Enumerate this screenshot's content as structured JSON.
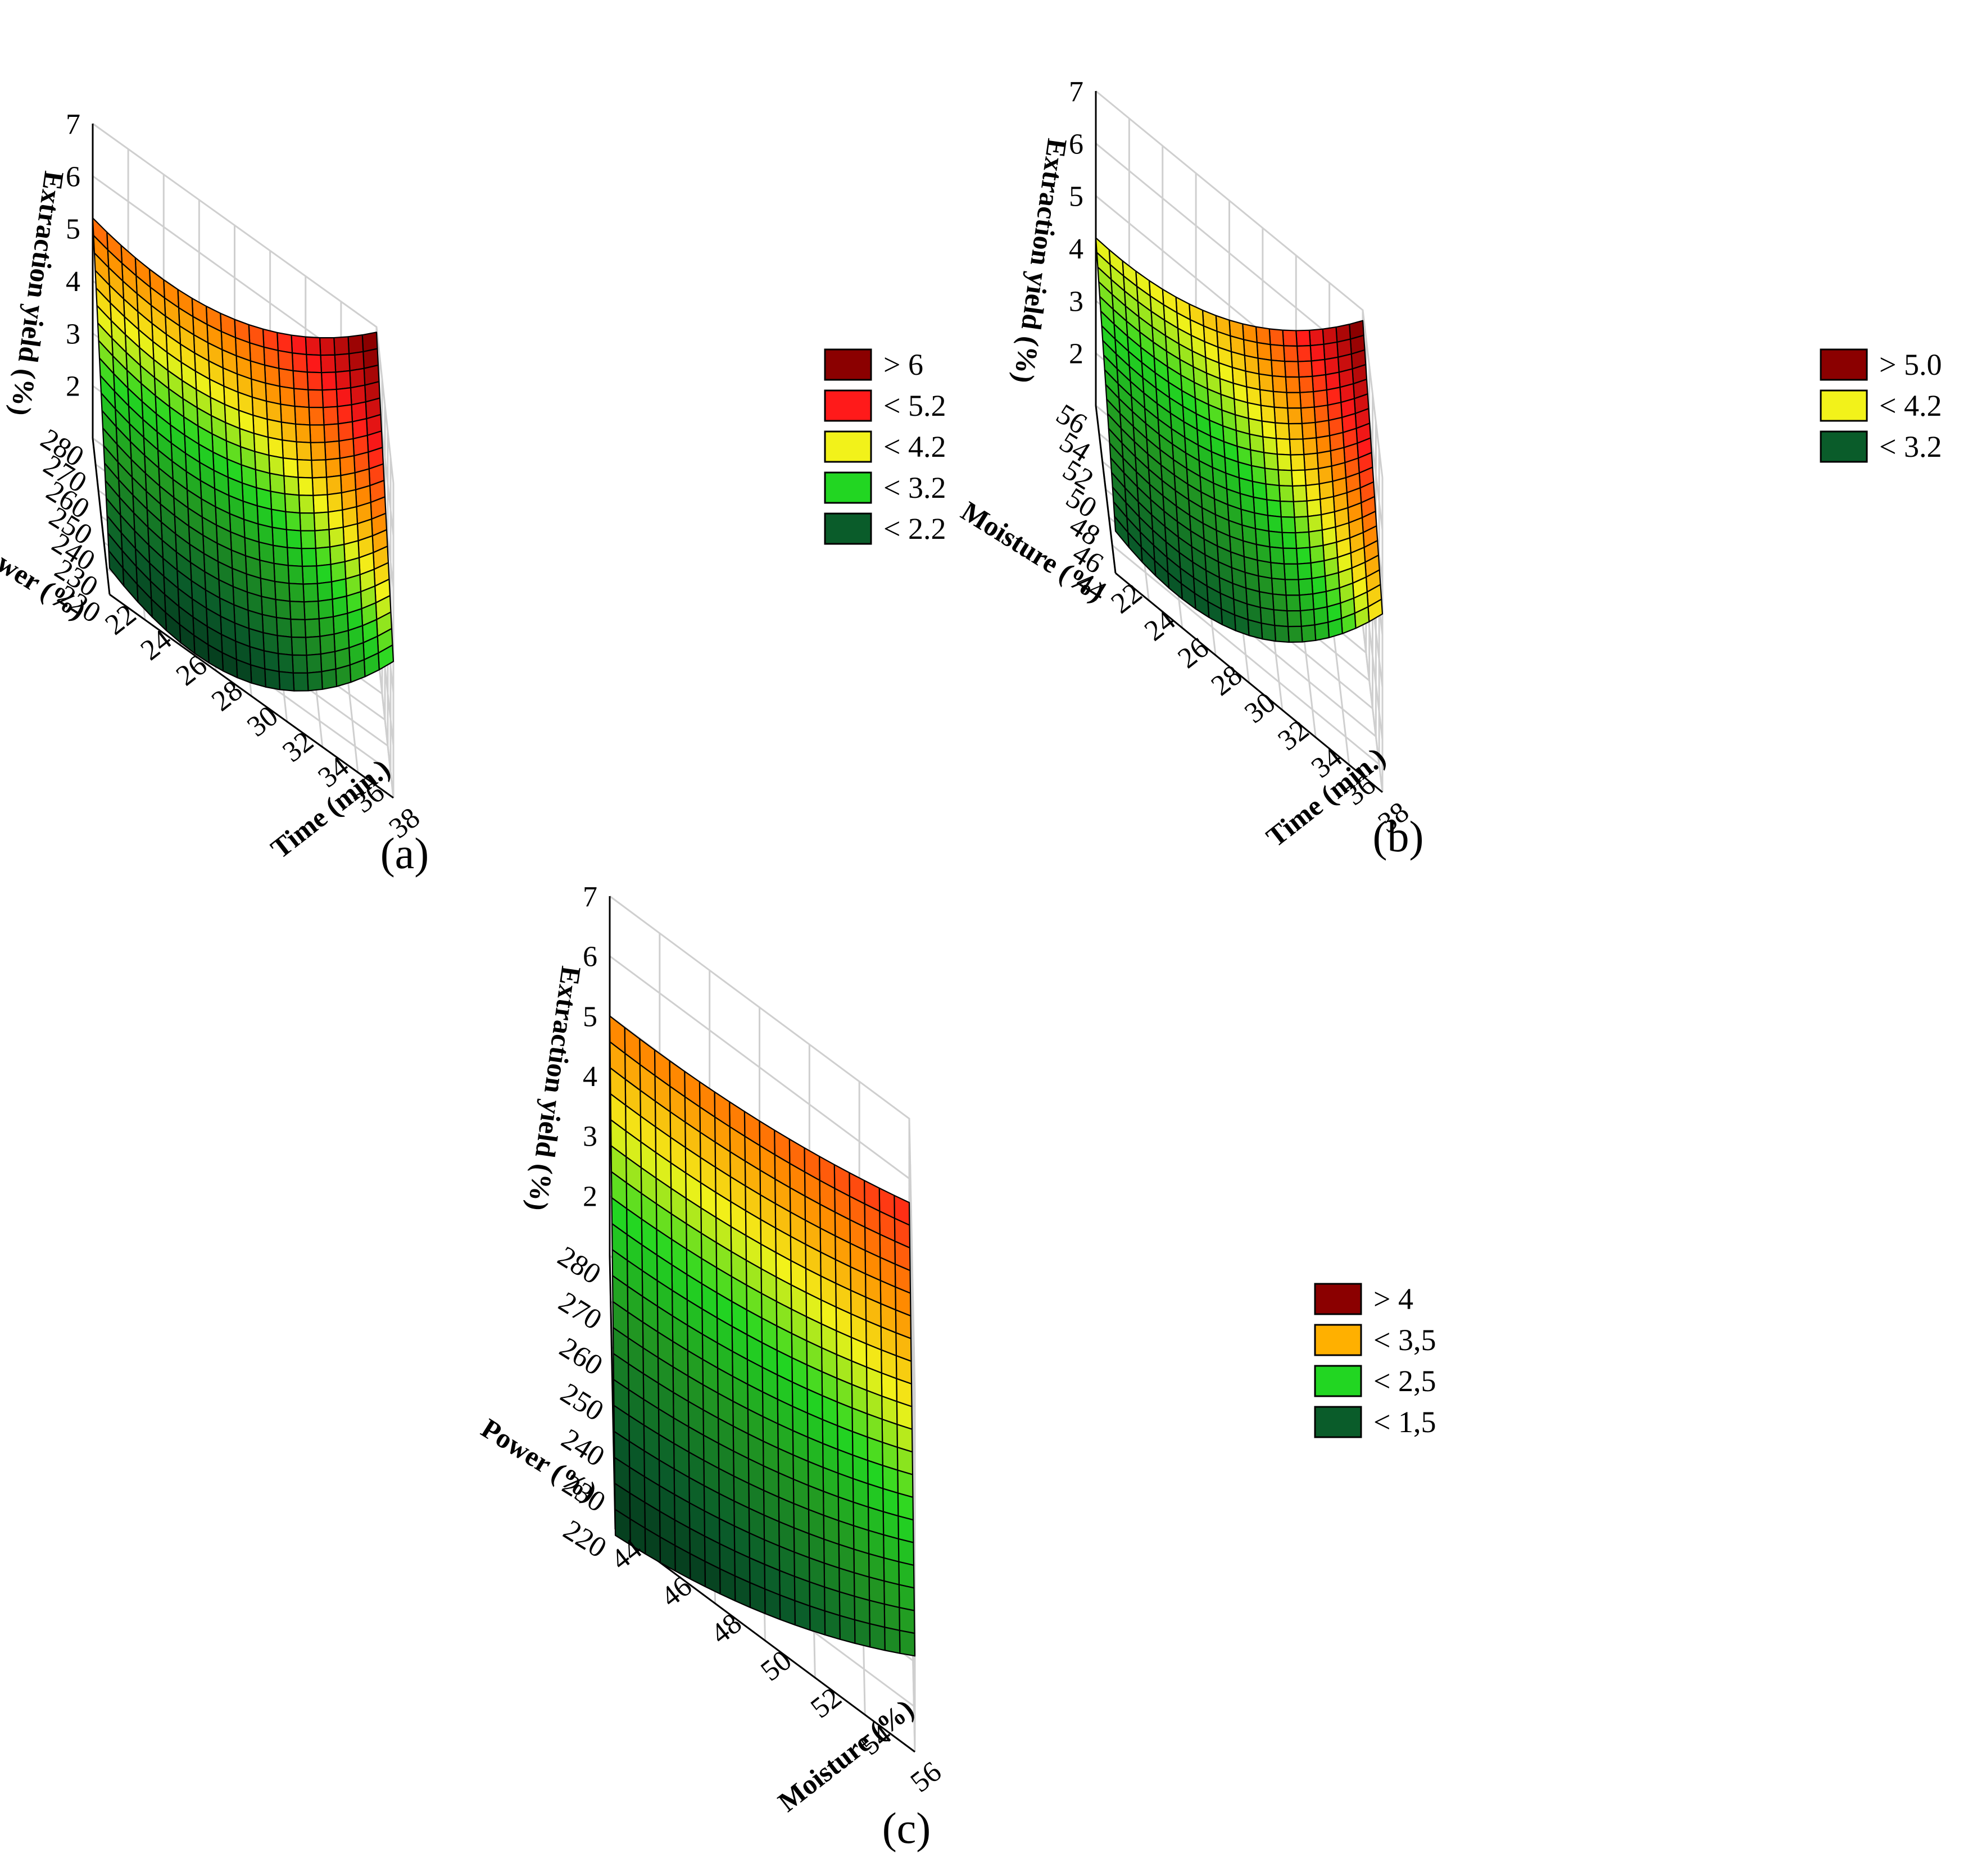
{
  "figure": {
    "colors": {
      "dark_red": "#8b0000",
      "red": "#ff1a1a",
      "orange": "#ff8c00",
      "yellow": "#f2f21a",
      "light_green": "#22d622",
      "green": "#229922",
      "dark_green": "#0a5c2a",
      "grid": "#cfcfcf",
      "mesh": "#000000"
    }
  },
  "chart_data": [
    {
      "id": "a",
      "type": "surface",
      "caption": "(a)",
      "x_label": "Time (min.)",
      "y_label": "Power (%)",
      "z_label": "Extraction yield (%)",
      "x_ticks": [
        "22",
        "24",
        "26",
        "28",
        "30",
        "32",
        "34",
        "36",
        "38"
      ],
      "y_ticks": [
        "220",
        "230",
        "240",
        "250",
        "260",
        "270",
        "280"
      ],
      "z_ticks": [
        "2",
        "3",
        "4",
        "5",
        "6",
        "7"
      ],
      "xlim": [
        22,
        38
      ],
      "ylim": [
        220,
        280
      ],
      "zlim": [
        1,
        7
      ],
      "corner_values": {
        "xmin_ymin": 1.5,
        "xmax_ymin": 3.6,
        "xmin_ymax": 5.2,
        "xmax_ymax": 6.9
      },
      "curvature": 1.3,
      "legend": [
        {
          "label": "> 6",
          "color": "#8b0000"
        },
        {
          "label": "< 5.2",
          "color": "#ff1a1a"
        },
        {
          "label": "< 4.2",
          "color": "#f2f21a"
        },
        {
          "label": "< 3.2",
          "color": "#22d622"
        },
        {
          "label": "< 2.2",
          "color": "#0a5c2a"
        }
      ]
    },
    {
      "id": "b",
      "type": "surface",
      "caption": "(b)",
      "x_label": "Time (min.)",
      "y_label": "Moisture (%)",
      "z_label": "Extraction yield (%)",
      "x_ticks": [
        "22",
        "24",
        "26",
        "28",
        "30",
        "32",
        "34",
        "36",
        "38"
      ],
      "y_ticks": [
        "44",
        "46",
        "48",
        "50",
        "52",
        "54",
        "56"
      ],
      "z_ticks": [
        "2",
        "3",
        "4",
        "5",
        "6",
        "7"
      ],
      "xlim": [
        22,
        38
      ],
      "ylim": [
        44,
        56
      ],
      "zlim": [
        1,
        7
      ],
      "corner_values": {
        "xmin_ymin": 1.8,
        "xmax_ymin": 4.4,
        "xmin_ymax": 4.2,
        "xmax_ymax": 6.8
      },
      "curvature": 1.2,
      "legend": [
        {
          "label": "> 5.0",
          "color": "#8b0000"
        },
        {
          "label": "< 4.2",
          "color": "#f2f21a"
        },
        {
          "label": "< 3.2",
          "color": "#0a5c2a"
        }
      ]
    },
    {
      "id": "c",
      "type": "surface",
      "caption": "(c)",
      "x_label": "Moisture (%)",
      "y_label": "Power (%)",
      "z_label": "Extraction yield (%)",
      "x_ticks": [
        "44",
        "46",
        "48",
        "50",
        "52",
        "54",
        "56"
      ],
      "y_ticks": [
        "220",
        "230",
        "240",
        "250",
        "260",
        "270",
        "280"
      ],
      "z_ticks": [
        "2",
        "3",
        "4",
        "5",
        "6",
        "7"
      ],
      "xlim": [
        44,
        56
      ],
      "ylim": [
        220,
        280
      ],
      "zlim": [
        1,
        7
      ],
      "corner_values": {
        "xmin_ymin": 0.9,
        "xmax_ymin": 2.6,
        "xmin_ymax": 5.0,
        "xmax_ymax": 5.6
      },
      "curvature": 0.3,
      "legend": [
        {
          "label": "> 4",
          "color": "#8b0000"
        },
        {
          "label": "< 3,5",
          "color": "#ffb000"
        },
        {
          "label": "< 2,5",
          "color": "#22d622"
        },
        {
          "label": "< 1,5",
          "color": "#0a5c2a"
        }
      ]
    }
  ]
}
